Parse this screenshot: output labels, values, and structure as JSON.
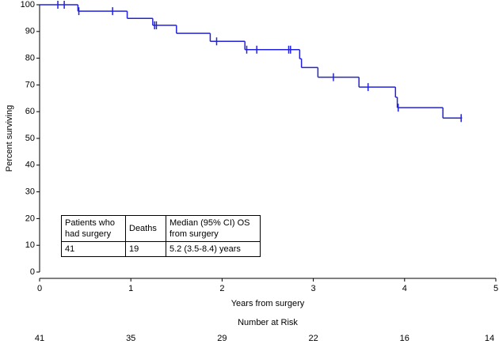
{
  "chart_data": {
    "type": "step",
    "x_label": "Years from surgery",
    "y_label": "Percent surviving",
    "xlim": [
      0,
      5
    ],
    "ylim": [
      0,
      100
    ],
    "xticks": [
      0,
      1,
      2,
      3,
      4,
      5
    ],
    "yticks": [
      0,
      10,
      20,
      30,
      40,
      50,
      60,
      70,
      80,
      90,
      100
    ],
    "series": [
      {
        "color": "#2222dd",
        "x": [
          0,
          0.42,
          0.96,
          1.24,
          1.5,
          1.87,
          2.25,
          2.85,
          2.87,
          3.05,
          3.5,
          3.9,
          3.92,
          4.42,
          4.63
        ],
        "values": [
          100,
          97.6,
          94.9,
          92.3,
          89.3,
          86.3,
          83.2,
          79.8,
          76.5,
          72.9,
          69.2,
          65.4,
          61.5,
          57.6,
          57.6
        ],
        "censored_x": [
          0.2,
          0.27,
          0.43,
          0.8,
          1.26,
          1.28,
          1.94,
          2.27,
          2.38,
          2.73,
          2.75,
          3.22,
          3.6,
          3.93,
          4.62
        ],
        "censored_y": [
          100,
          100,
          97.6,
          97.6,
          92.3,
          92.3,
          86.3,
          83.2,
          83.2,
          83.2,
          83.2,
          72.9,
          69.2,
          61.5,
          57.6
        ]
      }
    ],
    "table": {
      "header": [
        "Patients who had surgery",
        "Deaths",
        "Median (95% CI) OS from surgery"
      ],
      "row": [
        "41",
        "19",
        "5.2 (3.5-8.4) years"
      ]
    },
    "number_at_risk": {
      "title": "Number at Risk",
      "counts": [
        41,
        35,
        29,
        22,
        16,
        14
      ]
    }
  }
}
